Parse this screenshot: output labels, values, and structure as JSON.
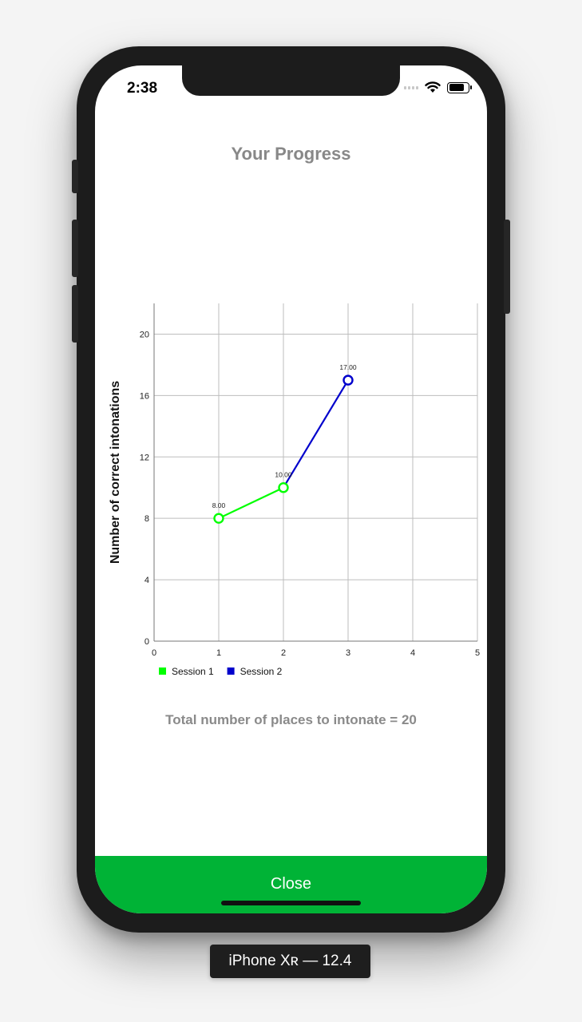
{
  "status": {
    "time": "2:38"
  },
  "page": {
    "title": "Your Progress",
    "total_text": "Total number of places to intonate = 20"
  },
  "close_button": {
    "label": "Close"
  },
  "device_label": "iPhone Xʀ — 12.4",
  "colors": {
    "accent_green": "#00b336",
    "session1": "#00ff00",
    "session2": "#0000cc"
  },
  "chart_data": {
    "type": "line",
    "ylabel": "Number of correct intonations",
    "xlabel": "",
    "xlim": [
      0,
      5
    ],
    "ylim": [
      0,
      22
    ],
    "x_ticks": [
      "0",
      "1",
      "2",
      "3",
      "4",
      "5"
    ],
    "y_ticks": [
      "0",
      "4",
      "8",
      "12",
      "16",
      "20"
    ],
    "grid": true,
    "legend_position": "bottom-left",
    "series": [
      {
        "name": "Session 1",
        "color": "#00ff00",
        "points": [
          {
            "x": 1,
            "y": 8,
            "label": "8.00"
          },
          {
            "x": 2,
            "y": 10,
            "label": "10.00"
          }
        ]
      },
      {
        "name": "Session 2",
        "color": "#0000cc",
        "points": [
          {
            "x": 2,
            "y": 10,
            "label": "10.00"
          },
          {
            "x": 3,
            "y": 17,
            "label": "17.00"
          }
        ]
      }
    ]
  }
}
